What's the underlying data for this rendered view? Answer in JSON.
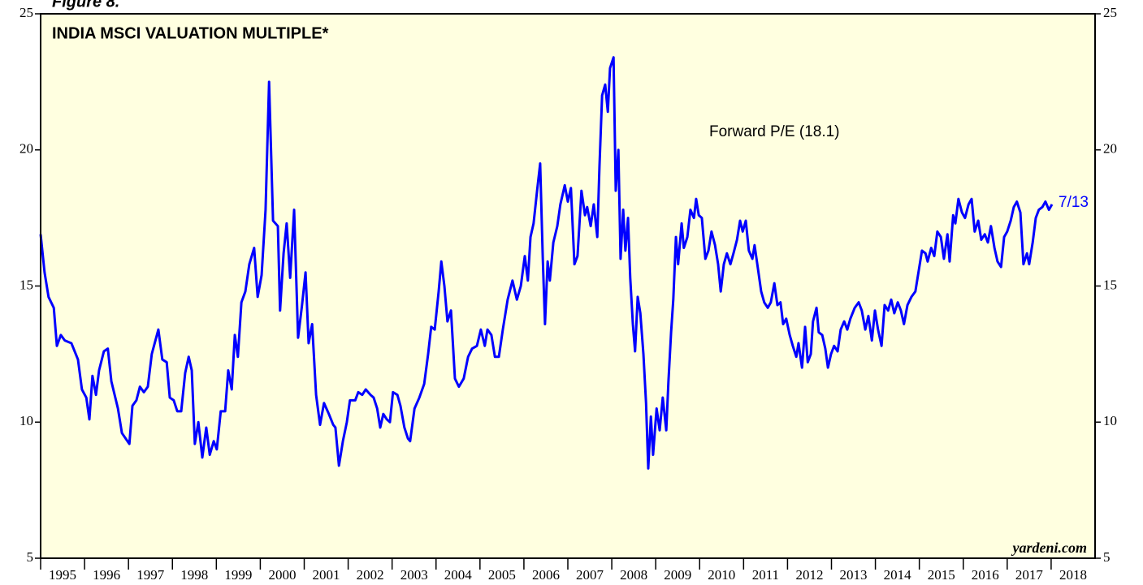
{
  "chart_data": {
    "type": "line",
    "figure_label": "Figure 8.",
    "title": "INDIA MSCI VALUATION MULTIPLE*",
    "end_label": "7/13",
    "source": "yardeni.com",
    "background": "#ffffe0",
    "xlim": [
      1995,
      2019
    ],
    "xticks": [
      1995,
      1996,
      1997,
      1998,
      1999,
      2000,
      2001,
      2002,
      2003,
      2004,
      2005,
      2006,
      2007,
      2008,
      2009,
      2010,
      2011,
      2012,
      2013,
      2014,
      2015,
      2016,
      2017,
      2018
    ],
    "ylim": [
      5,
      25
    ],
    "yticks": [
      5,
      10,
      15,
      20,
      25
    ],
    "x": [
      1995.0,
      1995.09,
      1995.18,
      1995.3,
      1995.37,
      1995.46,
      1995.55,
      1995.7,
      1995.85,
      1995.94,
      1996.04,
      1996.11,
      1996.18,
      1996.26,
      1996.33,
      1996.44,
      1996.53,
      1996.61,
      1996.76,
      1996.85,
      1997.02,
      1997.09,
      1997.18,
      1997.26,
      1997.35,
      1997.44,
      1997.53,
      1997.68,
      1997.77,
      1997.87,
      1997.94,
      1998.03,
      1998.11,
      1998.2,
      1998.29,
      1998.37,
      1998.44,
      1998.51,
      1998.59,
      1998.68,
      1998.77,
      1998.85,
      1998.94,
      1999.01,
      1999.1,
      1999.2,
      1999.27,
      1999.35,
      1999.42,
      1999.49,
      1999.57,
      1999.66,
      1999.75,
      1999.86,
      1999.94,
      2000.03,
      2000.12,
      2000.2,
      2000.29,
      2000.4,
      2000.45,
      2000.53,
      2000.6,
      2000.68,
      2000.77,
      2000.86,
      2000.95,
      2001.03,
      2001.1,
      2001.18,
      2001.27,
      2001.36,
      2001.45,
      2001.56,
      2001.66,
      2001.71,
      2001.79,
      2001.88,
      2001.97,
      2002.04,
      2002.16,
      2002.23,
      2002.32,
      2002.4,
      2002.51,
      2002.58,
      2002.66,
      2002.73,
      2002.8,
      2002.88,
      2002.95,
      2003.02,
      2003.12,
      2003.19,
      2003.28,
      2003.36,
      2003.41,
      2003.51,
      2003.62,
      2003.73,
      2003.82,
      2003.89,
      2003.97,
      2004.06,
      2004.12,
      2004.19,
      2004.26,
      2004.34,
      2004.43,
      2004.52,
      2004.63,
      2004.73,
      2004.82,
      2004.93,
      2005.02,
      2005.11,
      2005.17,
      2005.26,
      2005.34,
      2005.43,
      2005.52,
      2005.63,
      2005.74,
      2005.84,
      2005.93,
      2006.02,
      2006.09,
      2006.15,
      2006.22,
      2006.3,
      2006.37,
      2006.43,
      2006.48,
      2006.54,
      2006.59,
      2006.67,
      2006.76,
      2006.83,
      2006.93,
      2007.0,
      2007.07,
      2007.15,
      2007.22,
      2007.31,
      2007.39,
      2007.44,
      2007.52,
      2007.59,
      2007.67,
      2007.72,
      2007.78,
      2007.85,
      2007.91,
      2007.96,
      2008.04,
      2008.09,
      2008.15,
      2008.2,
      2008.26,
      2008.31,
      2008.37,
      2008.42,
      2008.48,
      2008.53,
      2008.59,
      2008.65,
      2008.72,
      2008.78,
      2008.83,
      2008.89,
      2008.94,
      2009.02,
      2009.09,
      2009.16,
      2009.24,
      2009.29,
      2009.35,
      2009.4,
      2009.46,
      2009.51,
      2009.59,
      2009.64,
      2009.72,
      2009.79,
      2009.87,
      2009.92,
      2009.98,
      2010.05,
      2010.13,
      2010.2,
      2010.27,
      2010.35,
      2010.42,
      2010.48,
      2010.55,
      2010.62,
      2010.7,
      2010.77,
      2010.85,
      2010.92,
      2010.98,
      2011.05,
      2011.12,
      2011.2,
      2011.25,
      2011.33,
      2011.4,
      2011.47,
      2011.55,
      2011.62,
      2011.7,
      2011.77,
      2011.84,
      2011.9,
      2011.97,
      2012.05,
      2012.12,
      2012.2,
      2012.25,
      2012.33,
      2012.4,
      2012.46,
      2012.53,
      2012.58,
      2012.66,
      2012.71,
      2012.79,
      2012.86,
      2012.92,
      2012.99,
      2013.06,
      2013.14,
      2013.21,
      2013.29,
      2013.36,
      2013.43,
      2013.53,
      2013.62,
      2013.69,
      2013.77,
      2013.84,
      2013.92,
      2013.99,
      2014.06,
      2014.14,
      2014.21,
      2014.29,
      2014.36,
      2014.43,
      2014.51,
      2014.58,
      2014.65,
      2014.73,
      2014.82,
      2014.91,
      2014.99,
      2015.06,
      2015.14,
      2015.19,
      2015.27,
      2015.34,
      2015.41,
      2015.49,
      2015.56,
      2015.64,
      2015.69,
      2015.77,
      2015.82,
      2015.89,
      2015.97,
      2016.04,
      2016.12,
      2016.19,
      2016.26,
      2016.34,
      2016.41,
      2016.49,
      2016.56,
      2016.63,
      2016.71,
      2016.78,
      2016.86,
      2016.93,
      2017.0,
      2017.08,
      2017.15,
      2017.22,
      2017.3,
      2017.37,
      2017.45,
      2017.5,
      2017.58,
      2017.65,
      2017.72,
      2017.8,
      2017.87,
      2017.95,
      2018.02
    ],
    "series": [
      {
        "name": "Forward P/E (18.1)",
        "color": "#0000ff",
        "values": [
          16.9,
          15.5,
          14.6,
          14.2,
          12.8,
          13.2,
          13.0,
          12.9,
          12.3,
          11.2,
          10.9,
          10.1,
          11.7,
          11.0,
          11.9,
          12.6,
          12.7,
          11.5,
          10.5,
          9.6,
          9.2,
          10.6,
          10.8,
          11.3,
          11.1,
          11.3,
          12.5,
          13.4,
          12.3,
          12.2,
          10.9,
          10.8,
          10.4,
          10.4,
          11.8,
          12.4,
          11.9,
          9.2,
          10.0,
          8.7,
          9.8,
          8.8,
          9.3,
          9.0,
          10.4,
          10.4,
          11.9,
          11.2,
          13.2,
          12.4,
          14.4,
          14.8,
          15.8,
          16.4,
          14.6,
          15.4,
          17.8,
          22.5,
          17.4,
          17.2,
          14.1,
          16.2,
          17.3,
          15.3,
          17.8,
          13.1,
          14.3,
          15.5,
          12.9,
          13.6,
          11.0,
          9.9,
          10.7,
          10.3,
          9.9,
          9.8,
          8.4,
          9.3,
          10.0,
          10.8,
          10.8,
          11.1,
          11.0,
          11.2,
          11.0,
          10.9,
          10.5,
          9.8,
          10.3,
          10.1,
          10.0,
          11.1,
          11.0,
          10.6,
          9.8,
          9.4,
          9.3,
          10.5,
          10.9,
          11.4,
          12.5,
          13.5,
          13.4,
          14.8,
          15.9,
          15.0,
          13.7,
          14.1,
          11.6,
          11.3,
          11.6,
          12.4,
          12.7,
          12.8,
          13.4,
          12.8,
          13.4,
          13.2,
          12.4,
          12.4,
          13.4,
          14.5,
          15.2,
          14.5,
          15.0,
          16.1,
          15.2,
          16.8,
          17.3,
          18.5,
          19.5,
          16.0,
          13.6,
          15.9,
          15.2,
          16.6,
          17.2,
          18.0,
          18.7,
          18.1,
          18.6,
          15.8,
          16.1,
          18.5,
          17.6,
          17.9,
          17.2,
          18.0,
          16.8,
          19.4,
          22.0,
          22.4,
          21.4,
          23.0,
          23.4,
          18.5,
          20.0,
          16.0,
          17.8,
          16.3,
          17.5,
          15.3,
          13.6,
          12.6,
          14.6,
          14.0,
          12.5,
          10.7,
          8.3,
          10.2,
          8.8,
          10.5,
          9.7,
          10.9,
          9.7,
          11.5,
          13.3,
          14.5,
          16.8,
          15.8,
          17.3,
          16.4,
          16.8,
          17.8,
          17.5,
          18.2,
          17.6,
          17.5,
          16.0,
          16.3,
          17.0,
          16.5,
          15.8,
          14.8,
          15.8,
          16.2,
          15.8,
          16.2,
          16.7,
          17.4,
          17.0,
          17.4,
          16.3,
          16.0,
          16.5,
          15.6,
          14.8,
          14.4,
          14.2,
          14.4,
          15.1,
          14.3,
          14.4,
          13.6,
          13.8,
          13.2,
          12.8,
          12.4,
          12.9,
          12.0,
          13.5,
          12.2,
          12.5,
          13.7,
          14.2,
          13.3,
          13.2,
          12.7,
          12.0,
          12.5,
          12.8,
          12.6,
          13.4,
          13.7,
          13.4,
          13.8,
          14.2,
          14.4,
          14.1,
          13.4,
          13.9,
          13.0,
          14.1,
          13.4,
          12.8,
          14.3,
          14.1,
          14.5,
          14.0,
          14.4,
          14.1,
          13.6,
          14.3,
          14.6,
          14.8,
          15.6,
          16.3,
          16.2,
          15.9,
          16.4,
          16.1,
          17.0,
          16.8,
          16.0,
          16.9,
          15.9,
          17.6,
          17.3,
          18.2,
          17.7,
          17.5,
          18.0,
          18.2,
          17.0,
          17.4,
          16.7,
          16.9,
          16.6,
          17.2,
          16.4,
          15.9,
          15.7,
          16.8,
          17.0,
          17.4,
          17.9,
          18.1,
          17.7,
          15.8,
          16.2,
          15.8,
          16.6,
          17.5,
          17.8,
          17.9,
          18.1,
          17.8,
          18.0
        ]
      }
    ]
  }
}
